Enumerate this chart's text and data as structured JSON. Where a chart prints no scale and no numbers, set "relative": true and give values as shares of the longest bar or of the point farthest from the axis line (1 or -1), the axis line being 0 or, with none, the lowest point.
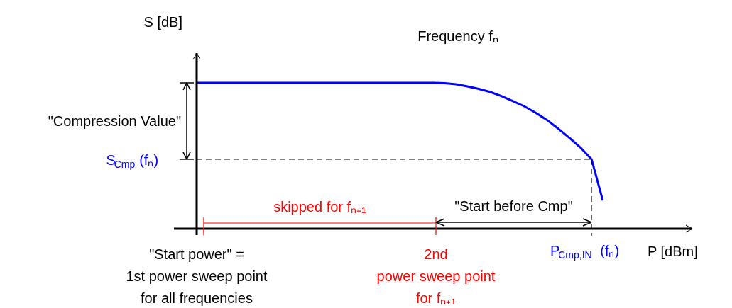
{
  "chart_data": {
    "type": "line",
    "title": "Frequency fₙ",
    "xlabel": "P [dBm]",
    "ylabel": "S [dB]",
    "relative": true,
    "categories": [
      null,
      null,
      null,
      null,
      null,
      null,
      null,
      null,
      null,
      null,
      null,
      null,
      null,
      null,
      null,
      null,
      null,
      null,
      null,
      null,
      null,
      null,
      null,
      null,
      null,
      null,
      null,
      null,
      null,
      null,
      null,
      null,
      null,
      null,
      null,
      null,
      null
    ],
    "series": [
      {
        "color": "#0000ff",
        "values": [
          1,
          1,
          1,
          1,
          1,
          1,
          1,
          1,
          1,
          1,
          1,
          1,
          1,
          1,
          1,
          1,
          1,
          1,
          1,
          1,
          1,
          1,
          0.998,
          0.99,
          0.976,
          0.959,
          0.938,
          0.91,
          0.876,
          0.841,
          0.797,
          0.748,
          0.689,
          0.626,
          0.558,
          0.476,
          0.194
        ]
      }
    ],
    "ref_lines": [
      {
        "axis": "y",
        "value": 0.476,
        "label": "S$_{Cmp}$ (fₙ)",
        "color": "#000000",
        "line_style": "dashed"
      }
    ],
    "annotations": [
      "\"Compression Value\"",
      "skipped for fₙ₊₁",
      "\"Start before Cmp\"",
      "P$_{Cmp,IN}$ (fₙ)",
      "\"Start power\" =\n1st power sweep point\nfor all frequencies",
      "2nd\npower sweep point\nfor fₙ₊₁"
    ]
  }
}
